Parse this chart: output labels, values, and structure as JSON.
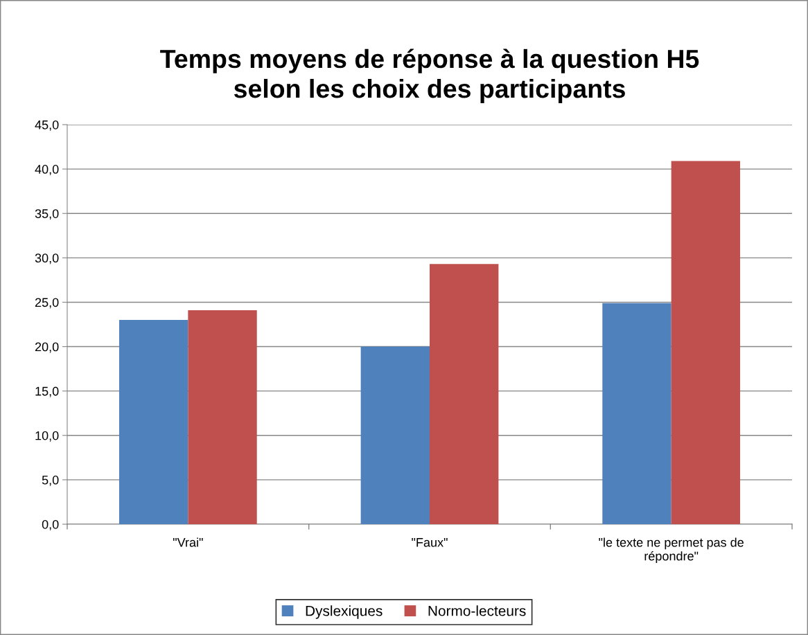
{
  "chart_data": {
    "type": "bar",
    "title": "Temps moyens de réponse à la question H5\nselon les choix des participants",
    "categories": [
      "\"Vrai\"",
      "\"Faux\"",
      "\"le texte ne permet pas de\nrépondre\""
    ],
    "series": [
      {
        "name": "Dyslexiques",
        "color": "#4f81bd",
        "values": [
          23.0,
          20.0,
          24.9
        ]
      },
      {
        "name": "Normo-lecteurs",
        "color": "#c0504d",
        "values": [
          24.1,
          29.3,
          40.9
        ]
      }
    ],
    "ylim": [
      0,
      45
    ],
    "yticks": [
      {
        "value": 0,
        "label": "0,0"
      },
      {
        "value": 5,
        "label": "5,0"
      },
      {
        "value": 10,
        "label": "10,0"
      },
      {
        "value": 15,
        "label": "15,0"
      },
      {
        "value": 20,
        "label": "20,0"
      },
      {
        "value": 25,
        "label": "25,0"
      },
      {
        "value": 30,
        "label": "30,0"
      },
      {
        "value": 35,
        "label": "35,0"
      },
      {
        "value": 40,
        "label": "40,0"
      },
      {
        "value": 45,
        "label": "45,0"
      }
    ],
    "grid": "y",
    "legend": "bottom"
  }
}
